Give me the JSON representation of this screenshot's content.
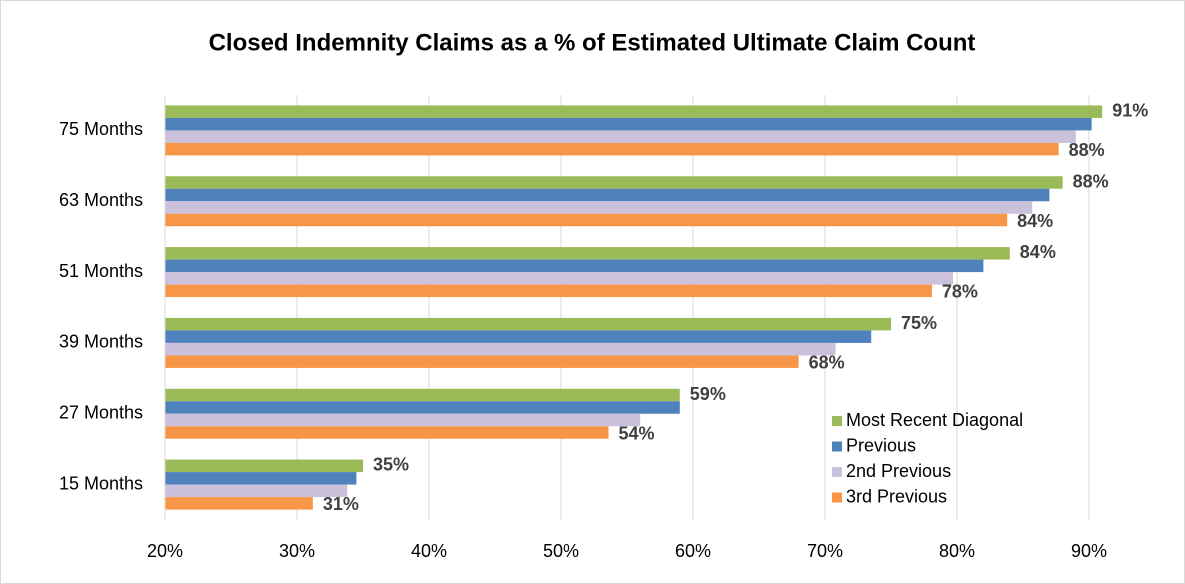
{
  "chart_data": {
    "type": "hbar",
    "title": "Closed Indemnity Claims as a % of Estimated Ultimate Claim Count",
    "categories": [
      "75 Months",
      "63 Months",
      "51 Months",
      "39 Months",
      "27 Months",
      "15 Months"
    ],
    "series": [
      {
        "name": "Most Recent Diagonal",
        "color": "#9bbb59",
        "values": [
          91,
          88,
          84,
          75,
          59,
          35
        ],
        "value_labels": [
          "91%",
          "88%",
          "84%",
          "75%",
          "59%",
          "35%"
        ]
      },
      {
        "name": "Previous",
        "color": "#4f81bd",
        "values": [
          90.2,
          87,
          82,
          73.5,
          59,
          34.5
        ]
      },
      {
        "name": "2nd Previous",
        "color": "#ccc1da",
        "values": [
          89,
          85.7,
          79.7,
          70.8,
          56,
          33.8
        ]
      },
      {
        "name": "3rd Previous",
        "color": "#f79646",
        "values": [
          87.7,
          83.8,
          78.1,
          68,
          53.6,
          31.2
        ],
        "value_labels": [
          "88%",
          "84%",
          "78%",
          "68%",
          "54%",
          "31%"
        ]
      }
    ],
    "xlim": [
      20,
      95
    ],
    "xticks": [
      {
        "value": 20,
        "label": "20%"
      },
      {
        "value": 30,
        "label": "30%"
      },
      {
        "value": 40,
        "label": "40%"
      },
      {
        "value": 50,
        "label": "50%"
      },
      {
        "value": 60,
        "label": "60%"
      },
      {
        "value": 70,
        "label": "70%"
      },
      {
        "value": 80,
        "label": "80%"
      },
      {
        "value": 90,
        "label": "90%"
      }
    ],
    "grid": true,
    "legend": "lower right"
  }
}
